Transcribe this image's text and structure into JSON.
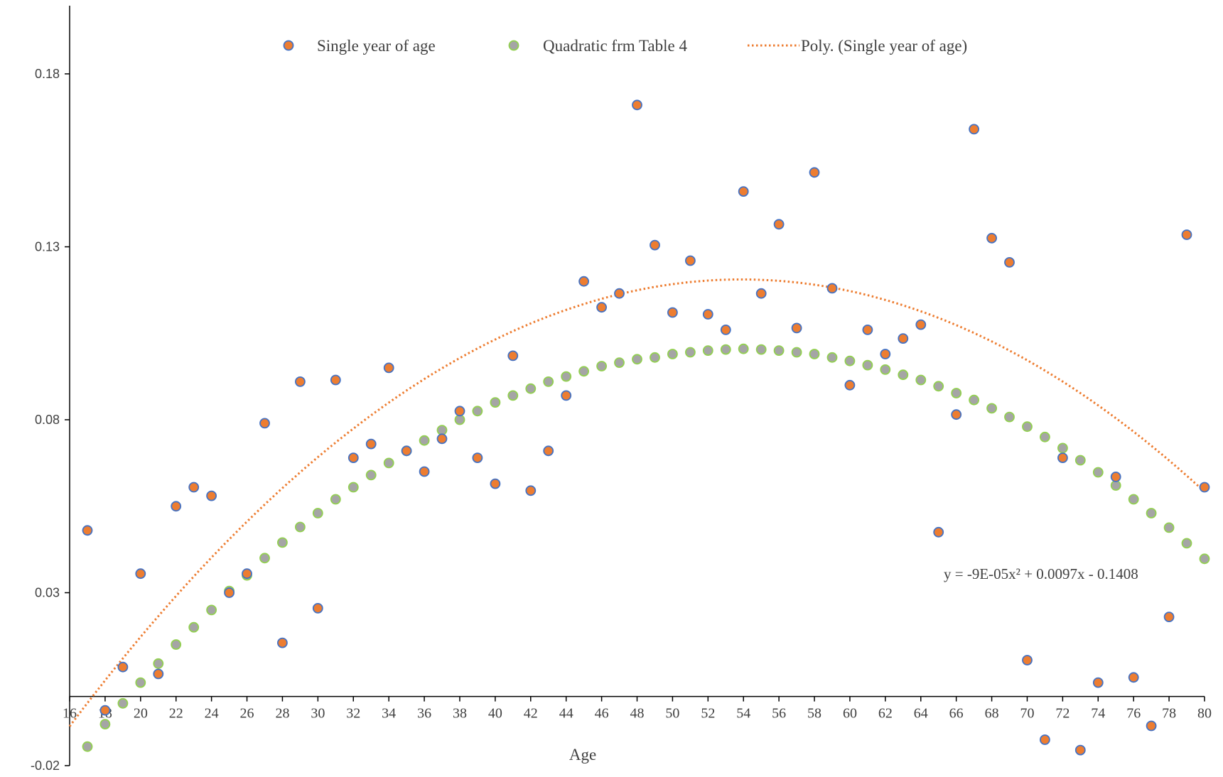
{
  "chart_data": {
    "type": "scatter",
    "xlabel": "Age",
    "ylabel": "",
    "xlim": [
      16,
      80
    ],
    "ylim": [
      -0.02,
      0.2
    ],
    "x_ticks": [
      16,
      18,
      20,
      22,
      24,
      26,
      28,
      30,
      32,
      34,
      36,
      38,
      40,
      42,
      44,
      46,
      48,
      50,
      52,
      54,
      56,
      58,
      60,
      62,
      64,
      66,
      68,
      70,
      72,
      74,
      76,
      78,
      80
    ],
    "y_ticks": [
      -0.02,
      0.03,
      0.08,
      0.13,
      0.18
    ],
    "y_tick_labels": [
      "-0.02",
      "0.03",
      "0.08",
      "0.13",
      "0.18"
    ],
    "grid": false,
    "legend_position": "top",
    "series": [
      {
        "name": "Single year of age",
        "kind": "marker",
        "fill": "#ED7D31",
        "stroke": "#4472C4",
        "x": [
          17,
          18,
          19,
          20,
          21,
          22,
          23,
          24,
          25,
          26,
          27,
          28,
          29,
          30,
          31,
          32,
          33,
          34,
          35,
          36,
          37,
          38,
          39,
          40,
          41,
          42,
          43,
          44,
          45,
          46,
          47,
          48,
          49,
          50,
          51,
          52,
          53,
          54,
          55,
          56,
          57,
          58,
          59,
          60,
          61,
          62,
          63,
          64,
          65,
          66,
          67,
          68,
          69,
          70,
          71,
          72,
          73,
          74,
          75,
          76,
          77,
          78,
          79,
          80
        ],
        "y": [
          0.048,
          -0.004,
          0.0085,
          0.0355,
          0.0065,
          0.055,
          0.0605,
          0.058,
          0.03,
          0.0355,
          0.079,
          0.0155,
          0.091,
          0.0255,
          0.0915,
          0.069,
          0.073,
          0.095,
          0.071,
          0.065,
          0.0745,
          0.0825,
          0.069,
          0.0615,
          0.0985,
          0.0595,
          0.071,
          0.087,
          0.12,
          0.1125,
          0.1165,
          0.171,
          0.1305,
          0.111,
          0.126,
          0.1105,
          0.106,
          0.146,
          0.1165,
          0.1365,
          0.1065,
          0.1515,
          0.118,
          0.09,
          0.106,
          0.099,
          0.1035,
          0.1075,
          0.0475,
          0.0815,
          0.164,
          0.1325,
          0.1255,
          0.0105,
          -0.0125,
          0.069,
          -0.0155,
          0.004,
          0.0635,
          0.0055,
          -0.0085,
          0.023,
          0.1335,
          0.0605
        ]
      },
      {
        "name": "Quadratic frm Table 4",
        "kind": "marker",
        "fill": "#A5A5A5",
        "stroke": "#92D050",
        "x": [
          17,
          18,
          19,
          20,
          21,
          22,
          23,
          24,
          25,
          26,
          27,
          28,
          29,
          30,
          31,
          32,
          33,
          34,
          35,
          36,
          37,
          38,
          39,
          40,
          41,
          42,
          43,
          44,
          45,
          46,
          47,
          48,
          49,
          50,
          51,
          52,
          53,
          54,
          55,
          56,
          57,
          58,
          59,
          60,
          61,
          62,
          63,
          64,
          65,
          66,
          67,
          68,
          69,
          70,
          71,
          72,
          73,
          74,
          75,
          76,
          77,
          78,
          79,
          80
        ],
        "y": [
          -0.0145,
          -0.008,
          -0.002,
          0.004,
          0.0095,
          0.015,
          0.02,
          0.025,
          0.0305,
          0.035,
          0.04,
          0.0445,
          0.049,
          0.053,
          0.057,
          0.0605,
          0.064,
          0.0675,
          0.071,
          0.074,
          0.077,
          0.08,
          0.0825,
          0.085,
          0.087,
          0.089,
          0.091,
          0.0925,
          0.094,
          0.0955,
          0.0965,
          0.0975,
          0.098,
          0.099,
          0.0995,
          0.1,
          0.1003,
          0.1005,
          0.1003,
          0.1,
          0.0995,
          0.099,
          0.098,
          0.097,
          0.0958,
          0.0945,
          0.093,
          0.0915,
          0.0897,
          0.0877,
          0.0857,
          0.0833,
          0.0808,
          0.078,
          0.075,
          0.0718,
          0.0683,
          0.0648,
          0.061,
          0.057,
          0.053,
          0.0488,
          0.0443,
          0.0398
        ]
      },
      {
        "name": "Poly. (Single year of age)",
        "kind": "trendline",
        "color": "#ED7D31",
        "equation": "y = -9E-05x² + 0.0097x - 0.1408",
        "coefficients": {
          "a": -9e-05,
          "b": 0.0097,
          "c": -0.1408
        }
      }
    ]
  }
}
